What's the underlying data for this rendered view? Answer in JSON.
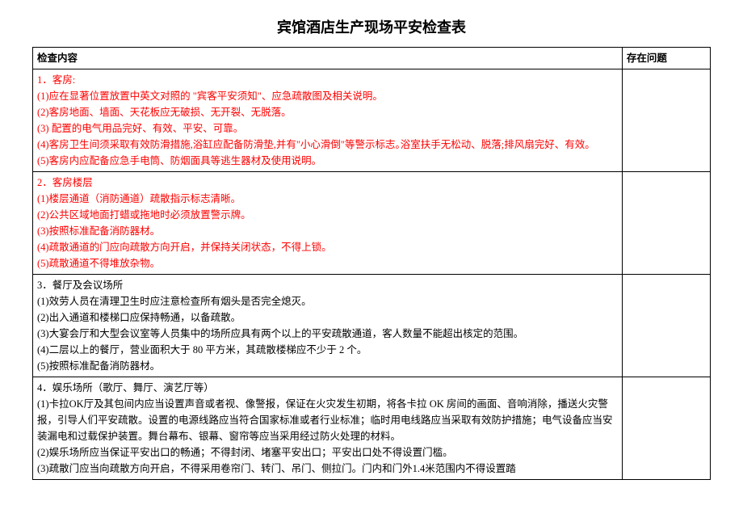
{
  "title": "宾馆酒店生产现场平安检查表",
  "header": {
    "content": "检查内容",
    "issues": "存在问题"
  },
  "rows": [
    {
      "color": "red",
      "text": "1．客房:\n(1)应在显著位置放置中英文对照的 \"宾客平安须知\"、应急疏散图及相关说明。\n(2)客房地面、墙面、天花板应无破损、无开裂、无脱落。\n(3) 配置的电气用品完好、有效、平安、可靠。\n(4)客房卫生间须采取有效防滑措施,浴缸应配备防滑垫,并有\"小心滑倒\"等警示标志｡浴室扶手无松动、脱落;排风扇完好、有效。\n(5)客房内应配备应急手电筒、防烟面具等逃生器材及使用说明。",
      "issues": ""
    },
    {
      "color": "red",
      "text": "2．客房楼层\n(1)楼层通道（消防通道）疏散指示标志清晰。\n(2)公共区域地面打蜡或拖地时必须放置警示牌。\n(3)按照标准配备消防器材。\n(4)疏散通道的门应向疏散方向开启，并保持关闭状态，不得上锁。\n(5)疏散通道不得堆放杂物。",
      "issues": ""
    },
    {
      "color": "black",
      "text": "3．餐厅及会议场所\n(1)效劳人员在清理卫生时应注意检查所有烟头是否完全熄灭。\n(2)出入通道和楼梯口应保持畅通，以备疏散。\n(3)大宴会厅和大型会议室等人员集中的场所应具有两个以上的平安疏散通道，客人数量不能超出核定的范围。\n(4)二层以上的餐厅，营业面积大于 80 平方米，其疏散楼梯应不少于 2 个。\n(5)按照标准配备消防器材。",
      "issues": ""
    },
    {
      "color": "black",
      "text": "4．娱乐场所（歌厅、舞厅、演艺厅等）\n(1)卡拉OK厅及其包间内应当设置声音或者视、像警报，保证在火灾发生初期，将各卡拉 OK 房间的画面、音响消除，播送火灾警报，引导人们平安疏散。设置的电源线路应当符合国家标准或者行业标准；临时用电线路应当采取有效防护措施；电气设备应当安装漏电和过载保护装置。舞台幕布、银幕、窗帘等应当采用经过防火处理的材料。\n(2)娱乐场所应当保证平安出口的畅通；不得封闭、堵塞平安出口；平安出口处不得设置门槛。\n(3)疏散门应当向疏散方向开启，不得采用卷帘门、转门、吊门、侧拉门。门内和门外1.4米范围内不得设置踏",
      "issues": ""
    }
  ]
}
